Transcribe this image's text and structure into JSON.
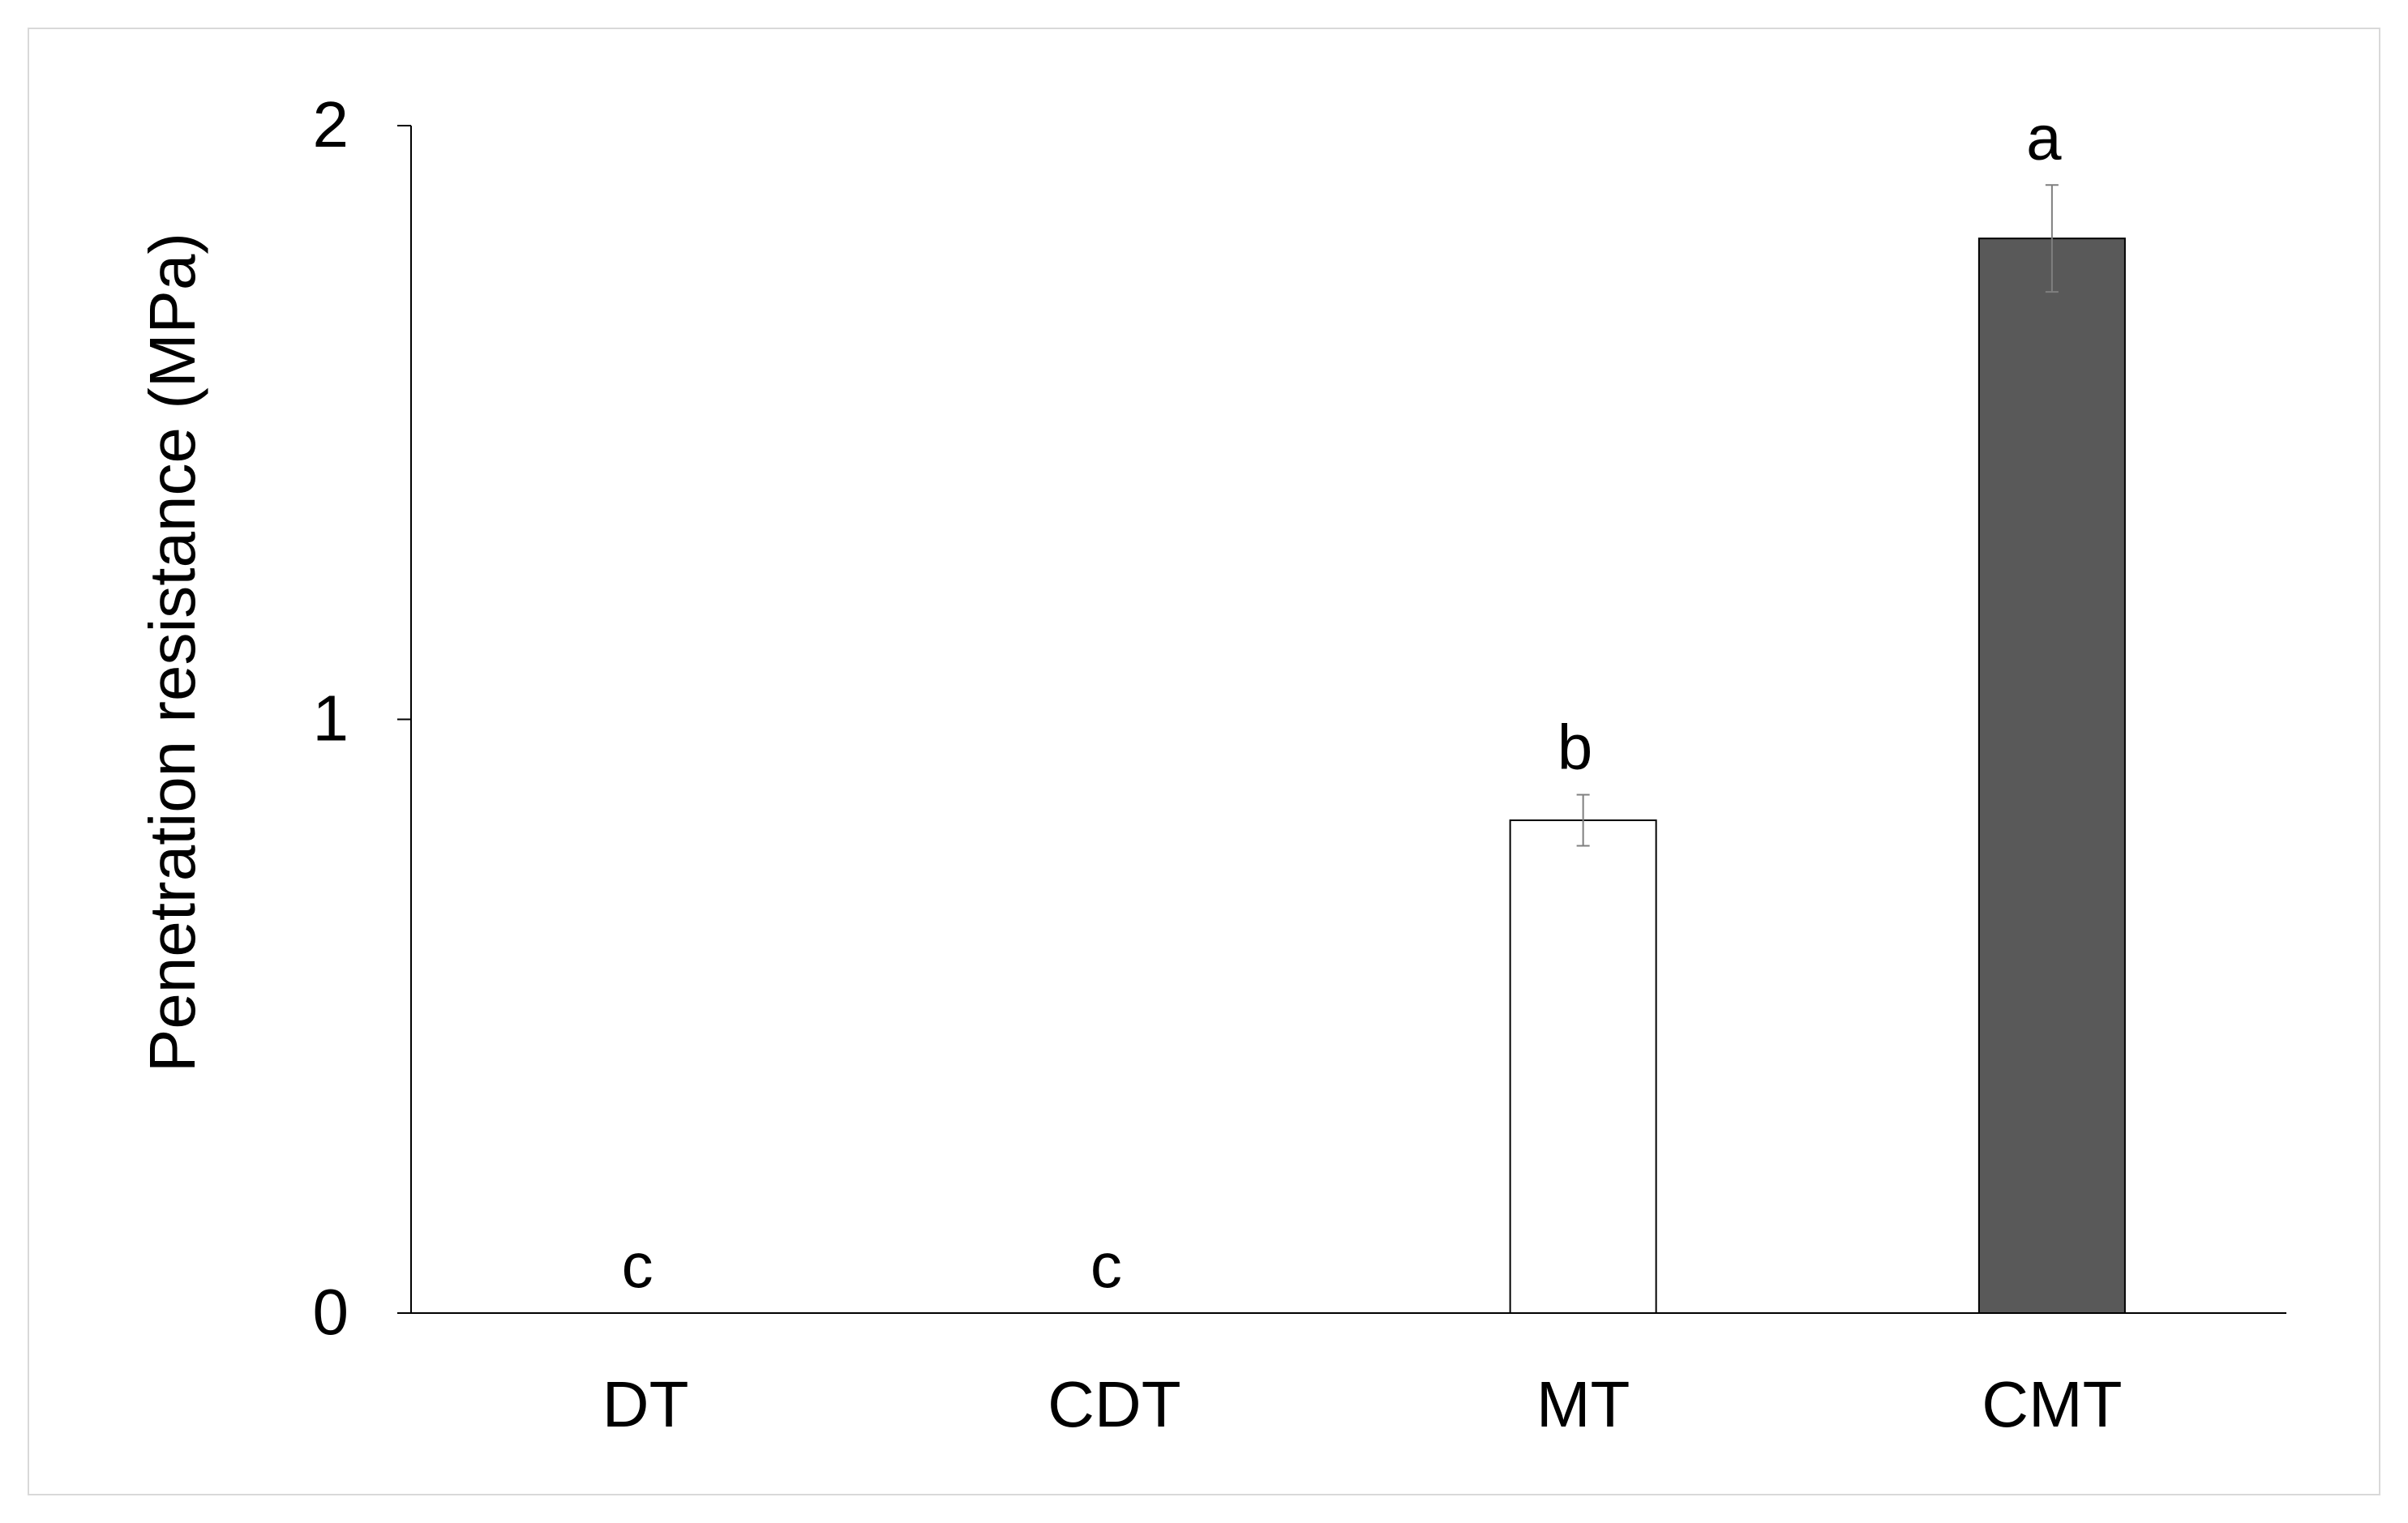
{
  "chart_data": {
    "type": "bar",
    "categories": [
      "DT",
      "CDT",
      "MT",
      "CMT"
    ],
    "values": [
      0,
      0,
      0.83,
      1.81
    ],
    "errors": [
      0,
      0,
      0.043,
      0.09
    ],
    "letters": [
      "c",
      "c",
      "b",
      "a"
    ],
    "bar_colors": [
      "#ffffff",
      "#ffffff",
      "#ffffff",
      "#595959"
    ],
    "ylabel": "Penetration resistance (MPa)",
    "ylim": [
      0,
      2
    ],
    "yticks": [
      0,
      1,
      2
    ],
    "grid": false
  }
}
